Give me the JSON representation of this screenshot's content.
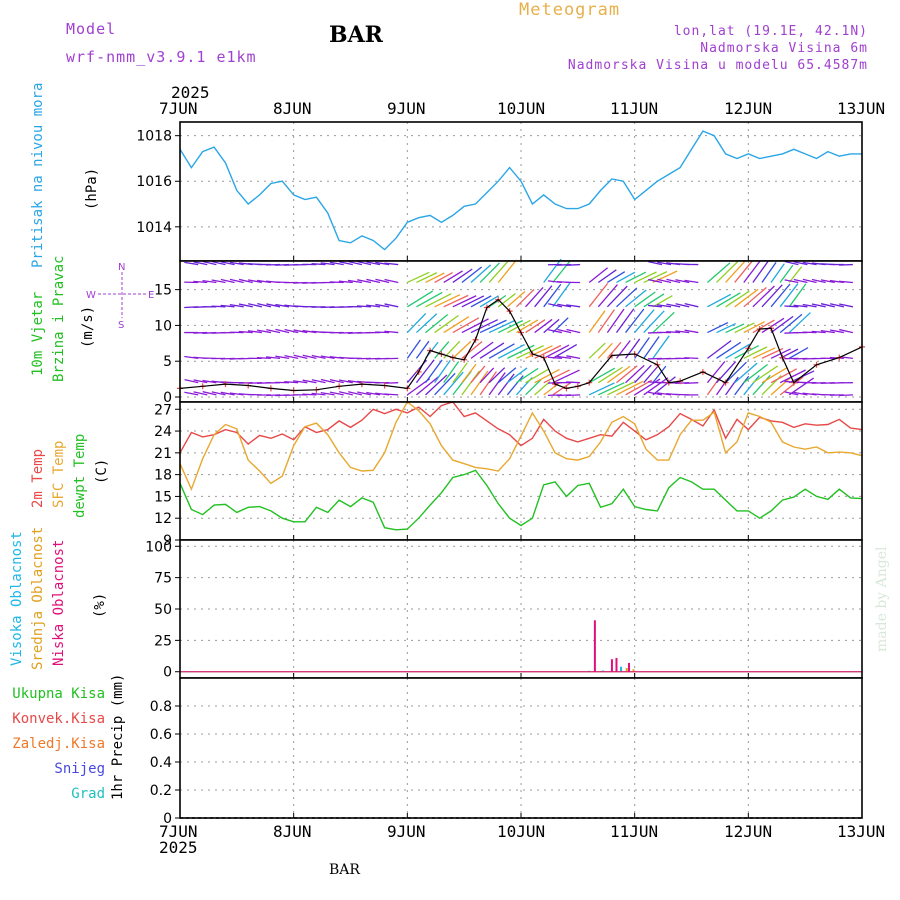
{
  "header": {
    "model_label": "Model",
    "model_name": "wrf-nmm_v3.9.1 e1km",
    "station": "BAR",
    "title": "Meteogram",
    "lonlat": "lon,lat (19.1E, 42.1N)",
    "altitude": "Nadmorska Visina 6m",
    "model_altitude": "Nadmorska Visina u modelu 65.4587m"
  },
  "footer": {
    "station": "BAR",
    "watermark": "made by Angel"
  },
  "year_top": "2025",
  "year_bottom": "2025",
  "colors": {
    "pressure": "#2aa6e6",
    "temp2m": "#e84848",
    "sfc": "#e8a830",
    "dewpt": "#22c022",
    "vis_high": "#20b8e8",
    "vis_mid": "#e0a020",
    "vis_low": "#e0107a",
    "accent": "#a040d0"
  },
  "chart_data": [
    {
      "type": "line",
      "title": "",
      "x_ticks": [
        "7JUN",
        "8JUN",
        "9JUN",
        "10JUN",
        "11JUN",
        "12JUN",
        "13JUN"
      ],
      "ylabel": [
        "Pritisak na nivou mora"
      ],
      "unit": "(hPa)",
      "ylim": [
        1012.5,
        1018.6
      ],
      "yticks": [
        1014,
        1016,
        1018
      ],
      "grid": true,
      "series": [
        {
          "name": "Pritisak na nivou mora",
          "x_days": [
            0,
            0.1,
            0.2,
            0.3,
            0.4,
            0.5,
            0.6,
            0.7,
            0.8,
            0.9,
            1.0,
            1.1,
            1.2,
            1.3,
            1.4,
            1.5,
            1.6,
            1.7,
            1.8,
            1.9,
            2.0,
            2.1,
            2.2,
            2.3,
            2.4,
            2.5,
            2.6,
            2.7,
            2.8,
            2.9,
            3.0,
            3.1,
            3.2,
            3.3,
            3.4,
            3.5,
            3.6,
            3.7,
            3.8,
            3.9,
            4.0,
            4.1,
            4.2,
            4.3,
            4.4,
            4.5,
            4.6,
            4.7,
            4.8,
            4.9,
            5.0,
            5.1,
            5.2,
            5.3,
            5.4,
            5.5,
            5.6,
            5.7,
            5.8,
            5.9,
            6.0
          ],
          "values": [
            1017.4,
            1016.6,
            1017.3,
            1017.5,
            1016.8,
            1015.6,
            1015.0,
            1015.4,
            1015.9,
            1016.0,
            1015.4,
            1015.2,
            1015.3,
            1014.6,
            1013.4,
            1013.3,
            1013.6,
            1013.4,
            1013.0,
            1013.5,
            1014.2,
            1014.4,
            1014.5,
            1014.2,
            1014.5,
            1014.9,
            1015.0,
            1015.5,
            1016.0,
            1016.6,
            1016.0,
            1015.0,
            1015.4,
            1015.0,
            1014.8,
            1014.8,
            1015.0,
            1015.6,
            1016.1,
            1016.0,
            1015.2,
            1015.6,
            1016.0,
            1016.3,
            1016.6,
            1017.4,
            1018.2,
            1018.0,
            1017.2,
            1017.0,
            1017.2,
            1017.0,
            1017.1,
            1017.2,
            1017.4,
            1017.2,
            1017.0,
            1017.3,
            1017.1,
            1017.2,
            1017.2
          ]
        }
      ]
    },
    {
      "type": "line",
      "title": "",
      "ylabel": [
        "10m Vjetar",
        "Brzina i Pravac"
      ],
      "unit": "(m/s)",
      "compass": {
        "n": "N",
        "s": "S",
        "e": "E",
        "w": "W"
      },
      "ylim": [
        -0.7,
        19.0
      ],
      "yticks": [
        0,
        5,
        10,
        15
      ],
      "grid": true,
      "series": [
        {
          "name": "Brzina",
          "x_days": [
            0,
            0.2,
            0.4,
            0.6,
            0.8,
            1.0,
            1.2,
            1.4,
            1.6,
            1.8,
            2.0,
            2.1,
            2.2,
            2.3,
            2.4,
            2.5,
            2.6,
            2.7,
            2.8,
            2.9,
            3.0,
            3.1,
            3.2,
            3.3,
            3.4,
            3.5,
            3.6,
            3.8,
            4.0,
            4.2,
            4.3,
            4.4,
            4.6,
            4.8,
            5.0,
            5.1,
            5.2,
            5.3,
            5.4,
            5.6,
            5.8,
            6.0
          ],
          "values": [
            1.2,
            1.5,
            1.8,
            1.6,
            1.2,
            0.9,
            1.0,
            1.5,
            1.8,
            1.6,
            1.2,
            3.5,
            6.5,
            6.0,
            5.5,
            5.2,
            8.0,
            12.5,
            13.6,
            12.0,
            9.0,
            6.0,
            5.5,
            1.8,
            1.2,
            1.5,
            2.0,
            5.8,
            6.0,
            4.5,
            2.0,
            2.2,
            3.5,
            2.0,
            6.8,
            9.5,
            9.6,
            5.5,
            2.0,
            4.5,
            5.5,
            7.0
          ]
        }
      ]
    },
    {
      "type": "line",
      "title": "",
      "ylabel": [
        "2m Temp",
        "SFC Temp",
        "dewpt Temp"
      ],
      "unit": "(C)",
      "ylim": [
        9,
        28
      ],
      "yticks": [
        9,
        12,
        15,
        18,
        21,
        24,
        27
      ],
      "grid": true,
      "series": [
        {
          "name": "2m Temp",
          "x_days": [
            0,
            0.1,
            0.2,
            0.3,
            0.4,
            0.5,
            0.6,
            0.7,
            0.8,
            0.9,
            1.0,
            1.1,
            1.2,
            1.3,
            1.4,
            1.5,
            1.6,
            1.7,
            1.8,
            1.9,
            2.0,
            2.1,
            2.2,
            2.3,
            2.4,
            2.5,
            2.6,
            2.7,
            2.8,
            2.9,
            3.0,
            3.1,
            3.2,
            3.3,
            3.4,
            3.5,
            3.6,
            3.7,
            3.8,
            3.9,
            4.0,
            4.1,
            4.2,
            4.3,
            4.4,
            4.5,
            4.6,
            4.7,
            4.8,
            4.9,
            5.0,
            5.1,
            5.2,
            5.3,
            5.4,
            5.5,
            5.6,
            5.7,
            5.8,
            5.9,
            6.0
          ],
          "values": [
            21.0,
            23.8,
            23.2,
            23.5,
            24.2,
            23.8,
            22.2,
            23.4,
            23.0,
            23.6,
            22.8,
            24.6,
            23.8,
            24.2,
            25.4,
            24.5,
            25.5,
            27.0,
            26.4,
            27.0,
            26.5,
            27.3,
            26.0,
            27.5,
            28.0,
            26.0,
            26.5,
            25.4,
            24.3,
            23.5,
            22.0,
            23.0,
            25.6,
            24.0,
            23.0,
            22.5,
            23.0,
            23.5,
            23.3,
            25.2,
            24.0,
            22.8,
            23.5,
            24.6,
            26.4,
            25.6,
            24.7,
            26.9,
            23.0,
            25.6,
            24.2,
            25.9,
            25.4,
            25.2,
            24.5,
            25.0,
            24.8,
            24.9,
            25.6,
            24.4,
            24.2
          ]
        },
        {
          "name": "SFC Temp",
          "x_days": [
            0,
            0.1,
            0.2,
            0.3,
            0.4,
            0.5,
            0.6,
            0.7,
            0.8,
            0.9,
            1.0,
            1.1,
            1.2,
            1.3,
            1.4,
            1.5,
            1.6,
            1.7,
            1.8,
            1.9,
            2.0,
            2.1,
            2.2,
            2.3,
            2.4,
            2.5,
            2.6,
            2.7,
            2.8,
            2.9,
            3.0,
            3.1,
            3.2,
            3.3,
            3.4,
            3.5,
            3.6,
            3.7,
            3.8,
            3.9,
            4.0,
            4.1,
            4.2,
            4.3,
            4.4,
            4.5,
            4.6,
            4.7,
            4.8,
            4.9,
            5.0,
            5.1,
            5.2,
            5.3,
            5.4,
            5.5,
            5.6,
            5.7,
            5.8,
            5.9,
            6.0
          ],
          "values": [
            19.5,
            16.0,
            20.2,
            23.5,
            24.9,
            24.3,
            20.0,
            18.5,
            16.8,
            17.8,
            22.0,
            24.6,
            25.1,
            23.5,
            21.0,
            19.0,
            18.5,
            18.6,
            21.0,
            25.2,
            28.0,
            26.8,
            25.0,
            22.0,
            20.0,
            19.5,
            19.0,
            18.8,
            18.5,
            20.2,
            23.3,
            26.5,
            24.0,
            21.0,
            20.2,
            20.0,
            20.5,
            22.5,
            25.2,
            26.0,
            25.0,
            21.5,
            20.0,
            20.0,
            23.5,
            25.5,
            25.5,
            26.6,
            21.0,
            22.5,
            26.5,
            26.0,
            25.2,
            22.5,
            21.8,
            21.5,
            21.8,
            21.0,
            21.1,
            21.0,
            20.6
          ]
        },
        {
          "name": "dewpt Temp",
          "x_days": [
            0,
            0.1,
            0.2,
            0.3,
            0.4,
            0.5,
            0.6,
            0.7,
            0.8,
            0.9,
            1.0,
            1.1,
            1.2,
            1.3,
            1.4,
            1.5,
            1.6,
            1.7,
            1.8,
            1.9,
            2.0,
            2.1,
            2.2,
            2.3,
            2.4,
            2.5,
            2.6,
            2.7,
            2.8,
            2.9,
            3.0,
            3.1,
            3.2,
            3.3,
            3.4,
            3.5,
            3.6,
            3.7,
            3.8,
            3.9,
            4.0,
            4.1,
            4.2,
            4.3,
            4.4,
            4.5,
            4.6,
            4.7,
            4.8,
            4.9,
            5.0,
            5.1,
            5.2,
            5.3,
            5.4,
            5.5,
            5.6,
            5.7,
            5.8,
            5.9,
            6.0
          ],
          "values": [
            16.8,
            13.2,
            12.5,
            13.8,
            13.9,
            12.8,
            13.5,
            13.6,
            13.0,
            12.0,
            11.5,
            11.5,
            13.5,
            12.8,
            14.5,
            13.6,
            14.8,
            14.2,
            10.7,
            10.4,
            10.5,
            12.0,
            13.8,
            15.5,
            17.6,
            18.0,
            18.6,
            16.5,
            14.0,
            12.0,
            11.0,
            12.0,
            16.6,
            17.0,
            15.0,
            16.5,
            16.8,
            13.5,
            14.0,
            16.0,
            13.6,
            13.2,
            13.0,
            16.2,
            17.6,
            17.0,
            16.0,
            16.0,
            14.5,
            13.0,
            13.0,
            12.0,
            13.0,
            14.5,
            14.9,
            16.0,
            15.0,
            14.6,
            16.0,
            14.8,
            14.7
          ]
        }
      ]
    },
    {
      "type": "bar",
      "title": "",
      "ylabel": [
        "Visoka Oblacnost",
        "Srednja Oblacnost",
        "Niska Oblacnost"
      ],
      "unit": "(%)",
      "ylim": [
        -5,
        105
      ],
      "yticks": [
        0,
        25,
        50,
        75,
        100
      ],
      "grid": true,
      "series": [
        {
          "name": "Visoka Oblacnost",
          "x_days": [
            3.6,
            3.72,
            3.88
          ],
          "values": [
            0.8,
            1,
            4
          ]
        },
        {
          "name": "Srednja Oblacnost",
          "x_days": [
            3.93,
            3.99
          ],
          "values": [
            3,
            2
          ]
        },
        {
          "name": "Niska Oblacnost",
          "x_days": [
            3.65,
            3.8,
            3.84,
            3.95
          ],
          "values": [
            41,
            10,
            11,
            7
          ]
        }
      ]
    },
    {
      "type": "bar",
      "title": "",
      "legend": [
        {
          "label": "Ukupna Kisa",
          "color": "#22c022"
        },
        {
          "label": "Konvek.Kisa",
          "color": "#e84848"
        },
        {
          "label": "Zaledj.Kisa",
          "color": "#f07828"
        },
        {
          "label": "Snijeg",
          "color": "#4848e0"
        },
        {
          "label": "Grad",
          "color": "#20c0c0"
        }
      ],
      "unit": "1hr Precip (mm)",
      "ylim": [
        0,
        1.0
      ],
      "yticks": [
        0,
        0.2,
        0.4,
        0.6,
        0.8
      ],
      "grid": true,
      "series": []
    }
  ]
}
